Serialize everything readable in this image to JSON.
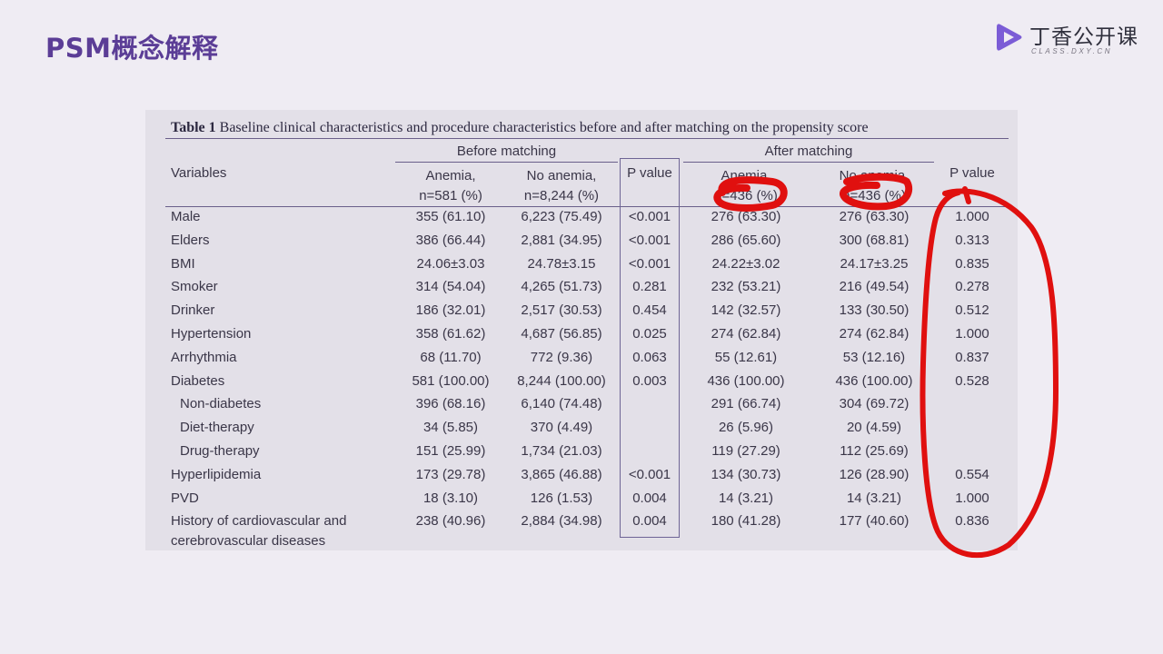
{
  "slide": {
    "title": "PSM概念解释"
  },
  "logo": {
    "name_cn": "丁香公开课",
    "name_en": "CLASS.DXY.CN",
    "brand_color": "#7b5cd6"
  },
  "table": {
    "caption_label": "Table 1",
    "caption_text": "Baseline clinical characteristics and procedure characteristics before and after matching on the propensity score",
    "group_before": "Before matching",
    "group_after": "After matching",
    "col_variables": "Variables",
    "col_anemia_before": [
      "Anemia,",
      "n=581 (%)"
    ],
    "col_noanemia_before": [
      "No anemia,",
      "n=8,244 (%)"
    ],
    "col_p_before": "P value",
    "col_anemia_after": [
      "Anemia,",
      "n=436 (%)"
    ],
    "col_noanemia_after": [
      "No anemia,",
      "n=436 (%)"
    ],
    "col_p_after": "P value",
    "rows": [
      {
        "label": "Male",
        "indent": false,
        "b_anemia": "355 (61.10)",
        "b_no": "6,223 (75.49)",
        "p_before": "<0.001",
        "a_anemia": "276 (63.30)",
        "a_no": "276 (63.30)",
        "p_after": "1.000"
      },
      {
        "label": "Elders",
        "indent": false,
        "b_anemia": "386 (66.44)",
        "b_no": "2,881 (34.95)",
        "p_before": "<0.001",
        "a_anemia": "286 (65.60)",
        "a_no": "300 (68.81)",
        "p_after": "0.313"
      },
      {
        "label": "BMI",
        "indent": false,
        "b_anemia": "24.06±3.03",
        "b_no": "24.78±3.15",
        "p_before": "<0.001",
        "a_anemia": "24.22±3.02",
        "a_no": "24.17±3.25",
        "p_after": "0.835"
      },
      {
        "label": "Smoker",
        "indent": false,
        "b_anemia": "314 (54.04)",
        "b_no": "4,265 (51.73)",
        "p_before": "0.281",
        "a_anemia": "232 (53.21)",
        "a_no": "216 (49.54)",
        "p_after": "0.278"
      },
      {
        "label": "Drinker",
        "indent": false,
        "b_anemia": "186 (32.01)",
        "b_no": "2,517 (30.53)",
        "p_before": "0.454",
        "a_anemia": "142 (32.57)",
        "a_no": "133 (30.50)",
        "p_after": "0.512"
      },
      {
        "label": "Hypertension",
        "indent": false,
        "b_anemia": "358 (61.62)",
        "b_no": "4,687 (56.85)",
        "p_before": "0.025",
        "a_anemia": "274 (62.84)",
        "a_no": "274 (62.84)",
        "p_after": "1.000"
      },
      {
        "label": "Arrhythmia",
        "indent": false,
        "b_anemia": "68 (11.70)",
        "b_no": "772 (9.36)",
        "p_before": "0.063",
        "a_anemia": "55 (12.61)",
        "a_no": "53 (12.16)",
        "p_after": "0.837"
      },
      {
        "label": "Diabetes",
        "indent": false,
        "b_anemia": "581 (100.00)",
        "b_no": "8,244 (100.00)",
        "p_before": "0.003",
        "a_anemia": "436 (100.00)",
        "a_no": "436 (100.00)",
        "p_after": "0.528"
      },
      {
        "label": "Non-diabetes",
        "indent": true,
        "b_anemia": "396 (68.16)",
        "b_no": "6,140 (74.48)",
        "p_before": "",
        "a_anemia": "291 (66.74)",
        "a_no": "304 (69.72)",
        "p_after": ""
      },
      {
        "label": "Diet-therapy",
        "indent": true,
        "b_anemia": "34 (5.85)",
        "b_no": "370 (4.49)",
        "p_before": "",
        "a_anemia": "26 (5.96)",
        "a_no": "20 (4.59)",
        "p_after": ""
      },
      {
        "label": "Drug-therapy",
        "indent": true,
        "b_anemia": "151 (25.99)",
        "b_no": "1,734 (21.03)",
        "p_before": "",
        "a_anemia": "119 (27.29)",
        "a_no": "112 (25.69)",
        "p_after": ""
      },
      {
        "label": "Hyperlipidemia",
        "indent": false,
        "b_anemia": "173 (29.78)",
        "b_no": "3,865 (46.88)",
        "p_before": "<0.001",
        "a_anemia": "134 (30.73)",
        "a_no": "126 (28.90)",
        "p_after": "0.554"
      },
      {
        "label": "PVD",
        "indent": false,
        "b_anemia": "18 (3.10)",
        "b_no": "126 (1.53)",
        "p_before": "0.004",
        "a_anemia": "14 (3.21)",
        "a_no": "14 (3.21)",
        "p_after": "1.000"
      },
      {
        "label": "History of cardiovascular and",
        "label2": "cerebrovascular diseases",
        "indent": false,
        "b_anemia": "238 (40.96)",
        "b_no": "2,884 (34.98)",
        "p_before": "0.004",
        "a_anemia": "180 (41.28)",
        "a_no": "177 (40.60)",
        "p_after": "0.836"
      }
    ]
  },
  "colors": {
    "title": "#5b3d96",
    "annotation_ink": "#e0100f",
    "box_border": "#6e6495"
  }
}
